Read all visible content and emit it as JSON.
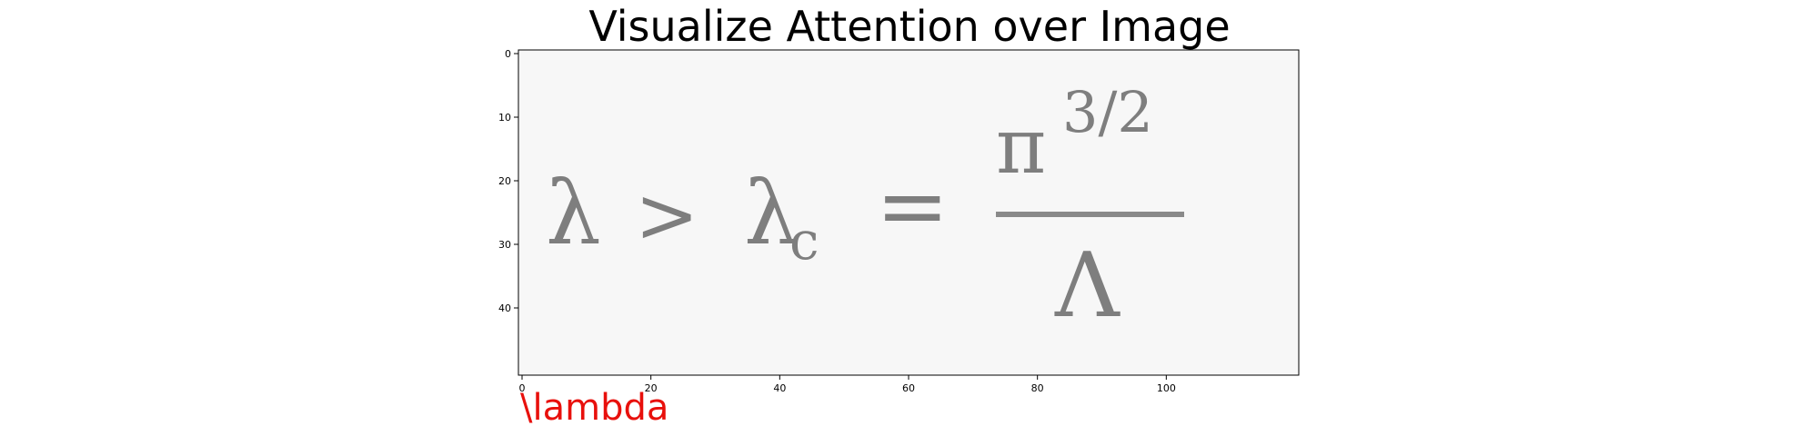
{
  "chart_data": {
    "type": "heatmap",
    "title": "Visualize Attention over Image",
    "xlim": [
      0,
      120
    ],
    "ylim": [
      50,
      0
    ],
    "x_ticks": [
      0,
      20,
      40,
      60,
      80,
      100
    ],
    "y_ticks": [
      0,
      10,
      20,
      30,
      40
    ],
    "grid": false,
    "image": "handwritten formula rendered in grayscale",
    "caption": "\\lambda",
    "caption_color": "#e8100c",
    "formula": {
      "lambda": "λ",
      "gt": ">",
      "lambda_c_base": "λ",
      "lambda_c_sub": "c",
      "equals": "=",
      "numerator": "π",
      "exponent": "3/2",
      "denominator": "Λ"
    }
  }
}
